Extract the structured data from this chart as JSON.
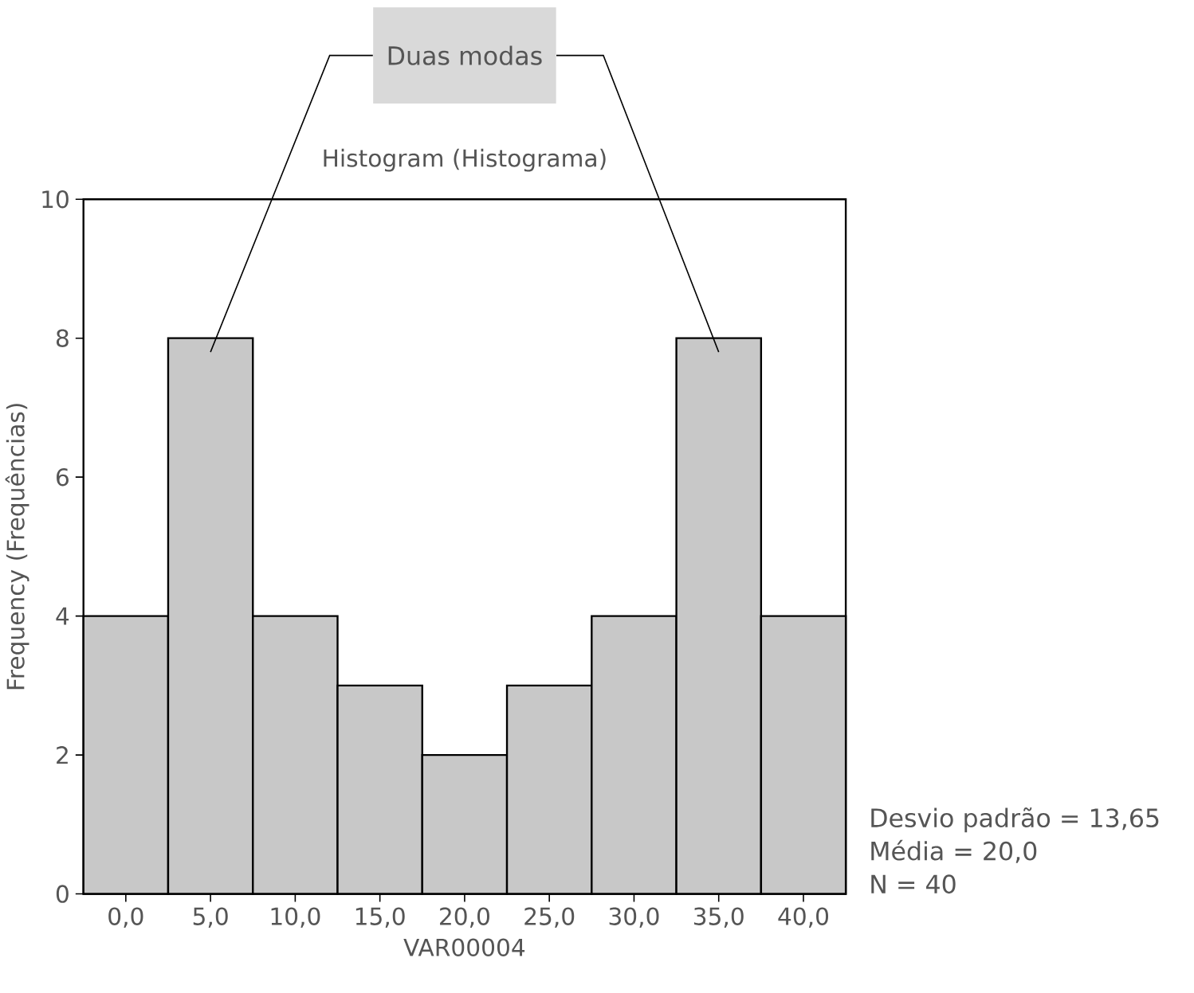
{
  "chart_data": {
    "type": "histogram",
    "title": "Histogram (Histograma)",
    "xlabel": "VAR00004",
    "ylabel": "Frequency (Frequências)",
    "bins": [
      -2.5,
      2.5,
      7.5,
      12.5,
      17.5,
      22.5,
      27.5,
      32.5,
      37.5,
      42.5
    ],
    "values": [
      4,
      8,
      4,
      3,
      2,
      3,
      4,
      8,
      4
    ],
    "color": "#c8c8c8",
    "xlim": [
      -2.5,
      42.5
    ],
    "xticks": [
      {
        "value": 0,
        "label": "0,0"
      },
      {
        "value": 5,
        "label": "5,0"
      },
      {
        "value": 10,
        "label": "10,0"
      },
      {
        "value": 15,
        "label": "15,0"
      },
      {
        "value": 20,
        "label": "20,0"
      },
      {
        "value": 25,
        "label": "25,0"
      },
      {
        "value": 30,
        "label": "30,0"
      },
      {
        "value": 35,
        "label": "35,0"
      },
      {
        "value": 40,
        "label": "40,0"
      }
    ],
    "ylim": [
      0,
      10
    ],
    "yticks": [
      0,
      2,
      4,
      6,
      8,
      10
    ],
    "annotations": [
      "Duas modas",
      "Desvio padrão = 13,65",
      "Média = 20,0",
      "N = 40"
    ]
  }
}
